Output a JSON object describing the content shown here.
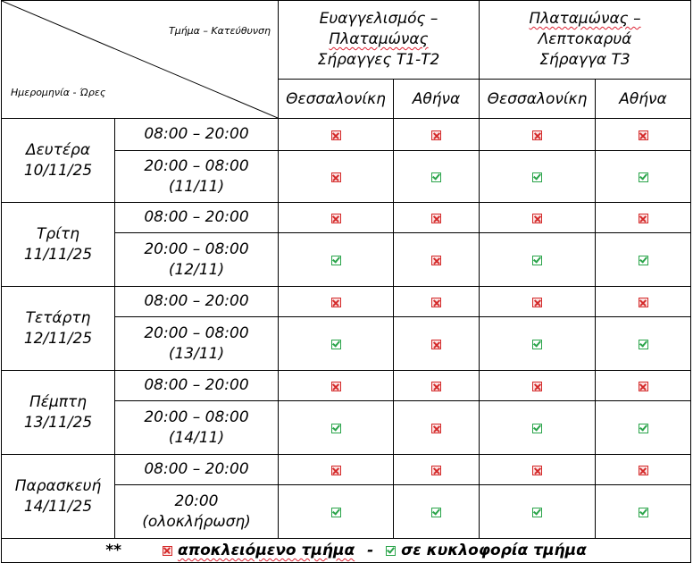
{
  "header": {
    "corner_top": "Τμήμα – Κατεύθυνση",
    "corner_bottom": "Ημερομηνία - Ώρες",
    "group1": {
      "line1": "Ευαγγελισμός –",
      "line2": "Πλαταμώνας",
      "line3": "Σήραγγες Τ1-Τ2"
    },
    "group2": {
      "line1": "Πλαταμώνας –",
      "line2": "Λεπτοκαρυά",
      "line3": "Σήραγγα Τ3"
    },
    "directions": [
      "Θεσσαλονίκη",
      "Αθήνα",
      "Θεσσαλονίκη",
      "Αθήνα"
    ]
  },
  "days": [
    {
      "name": "Δευτέρα",
      "date": "10/11/25",
      "slots": [
        {
          "t1": "08:00 – 20:00",
          "t2": "",
          "status": [
            "closed",
            "closed",
            "closed",
            "closed"
          ]
        },
        {
          "t1": "20:00 – 08:00",
          "t2": "(11/11)",
          "status": [
            "closed",
            "open",
            "open",
            "open"
          ]
        }
      ]
    },
    {
      "name": "Τρίτη",
      "date": "11/11/25",
      "slots": [
        {
          "t1": "08:00 – 20:00",
          "t2": "",
          "status": [
            "closed",
            "closed",
            "closed",
            "closed"
          ]
        },
        {
          "t1": "20:00 – 08:00",
          "t2": "(12/11)",
          "status": [
            "open",
            "closed",
            "open",
            "open"
          ]
        }
      ]
    },
    {
      "name": "Τετάρτη",
      "date": "12/11/25",
      "slots": [
        {
          "t1": "08:00 – 20:00",
          "t2": "",
          "status": [
            "closed",
            "closed",
            "closed",
            "closed"
          ]
        },
        {
          "t1": "20:00 – 08:00",
          "t2": "(13/11)",
          "status": [
            "open",
            "closed",
            "open",
            "open"
          ]
        }
      ]
    },
    {
      "name": "Πέμπτη",
      "date": "13/11/25",
      "slots": [
        {
          "t1": "08:00 – 20:00",
          "t2": "",
          "status": [
            "closed",
            "closed",
            "closed",
            "closed"
          ]
        },
        {
          "t1": "20:00 – 08:00",
          "t2": "(14/11)",
          "status": [
            "open",
            "closed",
            "open",
            "open"
          ]
        }
      ]
    },
    {
      "name": "Παρασκευή",
      "date": "14/11/25",
      "slots": [
        {
          "t1": "08:00 – 20:00",
          "t2": "",
          "status": [
            "closed",
            "closed",
            "closed",
            "closed"
          ]
        },
        {
          "t1": "20:00",
          "t2": "(ολοκλήρωση)",
          "status": [
            "open",
            "open",
            "open",
            "open"
          ]
        }
      ]
    }
  ],
  "legend": {
    "asterisks": "**",
    "closed_label": "αποκλειόμενο τμήμα",
    "separator": "-",
    "open_label": "σε κυκλοφορία τμήμα"
  },
  "colors": {
    "closed": "#d42a2a",
    "open": "#2aa44a"
  },
  "icons": {
    "closed": "red-x-box-icon",
    "open": "green-check-box-icon"
  }
}
